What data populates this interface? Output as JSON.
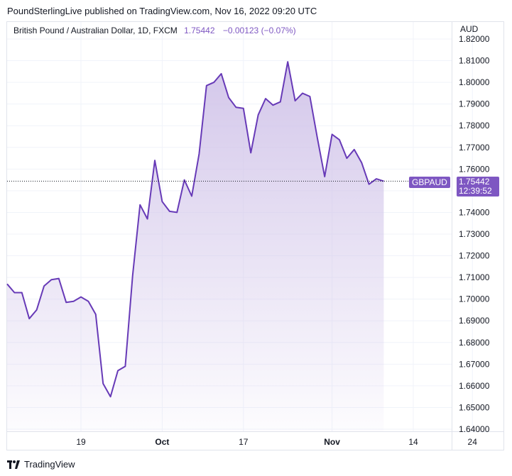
{
  "header": {
    "published": "PoundSterlingLive published on TradingView.com, Nov 16, 2022 09:20 UTC"
  },
  "legend": {
    "symbol": "British Pound / Australian Dollar, 1D, FXCM",
    "last": "1.75442",
    "change": "−0.00123 (−0.07%)"
  },
  "axis": {
    "currency": "AUD"
  },
  "price_tag": {
    "series": "GBPAUD",
    "value": "1.75442",
    "countdown": "12:39:52"
  },
  "footer": {
    "brand": "TradingView"
  },
  "colors": {
    "line": "#673ab7",
    "accent": "#7e57c2",
    "fill_top": "#d1c4e9",
    "grid": "#f0f3fa"
  },
  "chart_data": {
    "type": "area",
    "series": [
      {
        "name": "GBPAUD",
        "values": [
          1.707,
          1.703,
          1.703,
          1.691,
          1.695,
          1.706,
          1.709,
          1.7095,
          1.6985,
          1.699,
          1.701,
          1.699,
          1.693,
          1.661,
          1.655,
          1.667,
          1.669,
          1.711,
          1.7435,
          1.737,
          1.764,
          1.745,
          1.7405,
          1.74,
          1.755,
          1.7475,
          1.767,
          1.7985,
          1.8,
          1.804,
          1.793,
          1.7885,
          1.788,
          1.7675,
          1.785,
          1.7925,
          1.7895,
          1.791,
          1.8095,
          1.7915,
          1.795,
          1.7935,
          1.7745,
          1.7565,
          1.776,
          1.7735,
          1.765,
          1.769,
          1.763,
          1.753,
          1.7555,
          1.7544
        ]
      }
    ],
    "x_ticks": [
      {
        "label": "19",
        "index": 10,
        "bold": false
      },
      {
        "label": "Oct",
        "index": 21,
        "bold": true
      },
      {
        "label": "17",
        "index": 32,
        "bold": false
      },
      {
        "label": "Nov",
        "index": 44,
        "bold": true
      },
      {
        "label": "14",
        "index": 55,
        "bold": false
      },
      {
        "label": "24",
        "index": 63,
        "bold": false
      }
    ],
    "y_ticks": [
      "1.82000",
      "1.81000",
      "1.80000",
      "1.79000",
      "1.78000",
      "1.77000",
      "1.76000",
      "1.75000",
      "1.74000",
      "1.73000",
      "1.72000",
      "1.71000",
      "1.70000",
      "1.69000",
      "1.68000",
      "1.67000",
      "1.66000",
      "1.65000",
      "1.64000"
    ],
    "ylim": [
      1.64,
      1.82
    ],
    "current_value": 1.75442,
    "grid": true
  }
}
